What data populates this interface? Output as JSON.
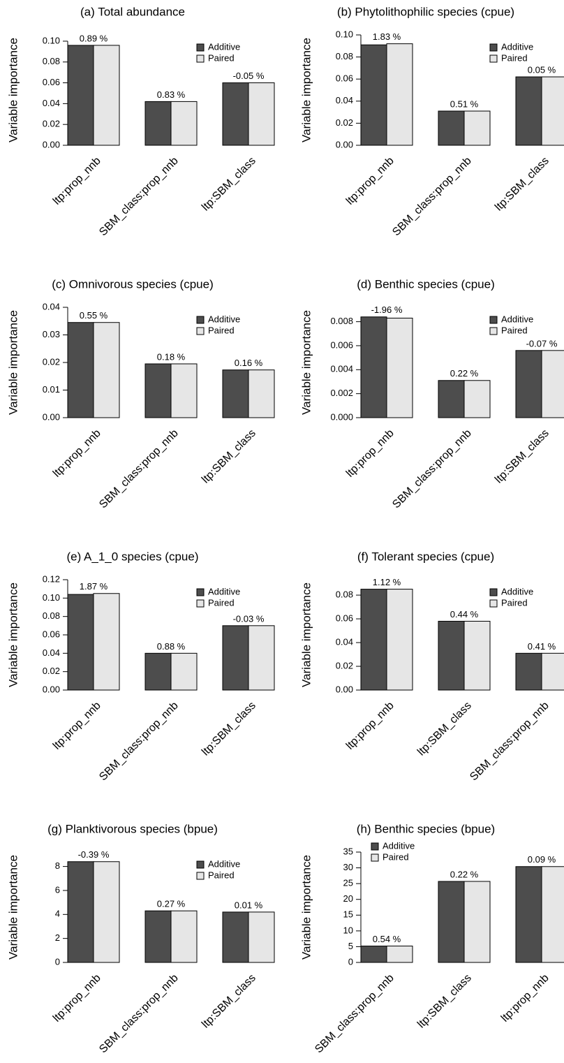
{
  "chart_data": [
    {
      "type": "bar",
      "title": "(a) Total abundance",
      "ylabel": "Variable importance",
      "categories": [
        "ltp:prop_nnb",
        "SBM_class:prop_nnb",
        "ltp:SBM_class"
      ],
      "series": [
        {
          "name": "Additive",
          "color": "#4d4d4d",
          "values": [
            0.096,
            0.042,
            0.06
          ]
        },
        {
          "name": "Paired",
          "color": "#e6e6e6",
          "values": [
            0.096,
            0.042,
            0.06
          ]
        }
      ],
      "group_labels": [
        "0.89 %",
        "0.83 %",
        "-0.05 %"
      ],
      "ylim": [
        0,
        0.106
      ],
      "yticks": [
        {
          "value": 0,
          "label": "0.00"
        },
        0.02,
        0.04,
        0.06,
        0.08,
        {
          "value": 0.1,
          "label": "0.10"
        }
      ],
      "legend": "top-right"
    },
    {
      "type": "bar",
      "title": "(b) Phytolithophilic species (cpue)",
      "ylabel": "Variable importance",
      "categories": [
        "ltp:prop_nnb",
        "SBM_class:prop_nnb",
        "ltp:SBM_class"
      ],
      "series": [
        {
          "name": "Additive",
          "color": "#4d4d4d",
          "values": [
            0.091,
            0.031,
            0.062
          ]
        },
        {
          "name": "Paired",
          "color": "#e6e6e6",
          "values": [
            0.092,
            0.031,
            0.062
          ]
        }
      ],
      "group_labels": [
        "1.83 %",
        "0.51 %",
        "0.05 %"
      ],
      "ylim": [
        0,
        0.1
      ],
      "yticks": [
        {
          "value": 0,
          "label": "0.00"
        },
        0.02,
        0.04,
        0.06,
        0.08,
        {
          "value": 0.1,
          "label": "0.10"
        }
      ],
      "legend": "top-right"
    },
    {
      "type": "bar",
      "title": "(c) Omnivorous species (cpue)",
      "ylabel": "Variable importance",
      "categories": [
        "ltp:prop_nnb",
        "SBM_class:prop_nnb",
        "ltp:SBM_class"
      ],
      "series": [
        {
          "name": "Additive",
          "color": "#4d4d4d",
          "values": [
            0.0345,
            0.0195,
            0.0173
          ]
        },
        {
          "name": "Paired",
          "color": "#e6e6e6",
          "values": [
            0.0345,
            0.0195,
            0.0173
          ]
        }
      ],
      "group_labels": [
        "0.55 %",
        "0.18 %",
        "0.16 %"
      ],
      "ylim": [
        0,
        0.04
      ],
      "yticks": [
        {
          "value": 0,
          "label": "0.00"
        },
        0.01,
        0.02,
        0.03,
        0.04
      ],
      "legend": "top-right"
    },
    {
      "type": "bar",
      "title": "(d) Benthic species (cpue)",
      "ylabel": "Variable importance",
      "categories": [
        "ltp:prop_nnb",
        "SBM_class:prop_nnb",
        "ltp:SBM_class"
      ],
      "series": [
        {
          "name": "Additive",
          "color": "#4d4d4d",
          "values": [
            0.0084,
            0.0031,
            0.0056
          ]
        },
        {
          "name": "Paired",
          "color": "#e6e6e6",
          "values": [
            0.0083,
            0.0031,
            0.0056
          ]
        }
      ],
      "group_labels": [
        "-1.96 %",
        "0.22 %",
        "-0.07 %"
      ],
      "ylim": [
        0,
        0.0092
      ],
      "yticks": [
        {
          "value": 0,
          "label": "0.000"
        },
        0.002,
        0.004,
        0.006,
        0.008
      ],
      "legend": "top-right"
    },
    {
      "type": "bar",
      "title": "(e) A_1_0 species (cpue)",
      "ylabel": "Variable importance",
      "categories": [
        "ltp:prop_nnb",
        "SBM_class:prop_nnb",
        "ltp:SBM_class"
      ],
      "series": [
        {
          "name": "Additive",
          "color": "#4d4d4d",
          "values": [
            0.104,
            0.04,
            0.07
          ]
        },
        {
          "name": "Paired",
          "color": "#e6e6e6",
          "values": [
            0.105,
            0.04,
            0.07
          ]
        }
      ],
      "group_labels": [
        "1.87 %",
        "0.88 %",
        "-0.03 %"
      ],
      "ylim": [
        0,
        0.12
      ],
      "yticks": [
        {
          "value": 0,
          "label": "0.00"
        },
        0.02,
        0.04,
        0.06,
        0.08,
        {
          "value": 0.1,
          "label": "0.10"
        },
        0.12
      ],
      "legend": "top-right"
    },
    {
      "type": "bar",
      "title": "(f) Tolerant species (cpue)",
      "ylabel": "Variable importance",
      "categories": [
        "ltp:prop_nnb",
        "ltp:SBM_class",
        "SBM_class:prop_nnb"
      ],
      "series": [
        {
          "name": "Additive",
          "color": "#4d4d4d",
          "values": [
            0.085,
            0.058,
            0.031
          ]
        },
        {
          "name": "Paired",
          "color": "#e6e6e6",
          "values": [
            0.085,
            0.058,
            0.031
          ]
        }
      ],
      "group_labels": [
        "1.12 %",
        "0.44 %",
        "0.41 %"
      ],
      "ylim": [
        0,
        0.093
      ],
      "yticks": [
        {
          "value": 0,
          "label": "0.00"
        },
        0.02,
        0.04,
        0.06,
        0.08
      ],
      "legend": "top-right"
    },
    {
      "type": "bar",
      "title": "(g) Planktivorous species (bpue)",
      "ylabel": "Variable importance",
      "categories": [
        "ltp:prop_nnb",
        "SBM_class:prop_nnb",
        "ltp:SBM_class"
      ],
      "series": [
        {
          "name": "Additive",
          "color": "#4d4d4d",
          "values": [
            8.4,
            4.3,
            4.2
          ]
        },
        {
          "name": "Paired",
          "color": "#e6e6e6",
          "values": [
            8.4,
            4.3,
            4.2
          ]
        }
      ],
      "group_labels": [
        "-0.39 %",
        "0.27 %",
        "0.01 %"
      ],
      "ylim": [
        0,
        9.2
      ],
      "yticks": [
        0,
        2,
        4,
        6,
        8
      ],
      "legend": "top-right"
    },
    {
      "type": "bar",
      "title": "(h) Benthic species (bpue)",
      "ylabel": "Variable importance",
      "categories": [
        "SBM_class:prop_nnb",
        "ltp:SBM_class",
        "ltp:prop_nnb"
      ],
      "series": [
        {
          "name": "Additive",
          "color": "#4d4d4d",
          "values": [
            5.2,
            25.7,
            30.4
          ]
        },
        {
          "name": "Paired",
          "color": "#e6e6e6",
          "values": [
            5.2,
            25.7,
            30.4
          ]
        }
      ],
      "group_labels": [
        "0.54 %",
        "0.22 %",
        "0.09 %"
      ],
      "ylim": [
        0,
        35
      ],
      "yticks": [
        0,
        5,
        10,
        15,
        20,
        25,
        30,
        35
      ],
      "legend": "top-left"
    }
  ]
}
